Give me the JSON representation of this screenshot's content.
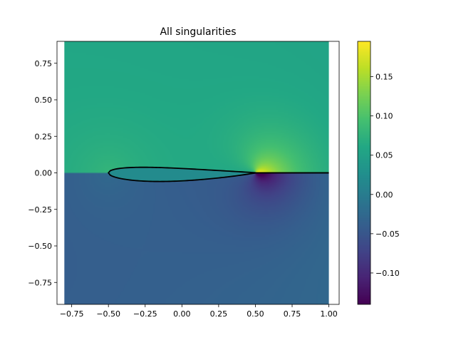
{
  "chart_data": {
    "type": "heatmap",
    "title": "All singularities",
    "xlabel": "",
    "ylabel": "",
    "xlim": [
      -0.85,
      1.07
    ],
    "ylim": [
      -0.9,
      0.9
    ],
    "field_extent": {
      "x": [
        -0.8,
        1.0
      ],
      "y": [
        -0.9,
        0.9
      ]
    },
    "x_ticks": [
      -0.75,
      -0.5,
      -0.25,
      0.0,
      0.25,
      0.5,
      0.75,
      1.0
    ],
    "x_tick_labels": [
      "−0.75",
      "−0.50",
      "−0.25",
      "0.00",
      "0.25",
      "0.50",
      "0.75",
      "1.00"
    ],
    "y_ticks": [
      -0.75,
      -0.5,
      -0.25,
      0.0,
      0.25,
      0.5,
      0.75
    ],
    "y_tick_labels": [
      "−0.75",
      "−0.50",
      "−0.25",
      "0.00",
      "0.25",
      "0.50",
      "0.75"
    ],
    "colormap": "viridis",
    "colorbar": {
      "min": -0.14,
      "max": 0.195,
      "ticks": [
        -0.1,
        -0.05,
        0.0,
        0.05,
        0.1,
        0.15
      ],
      "tick_labels": [
        "−0.10",
        "−0.05",
        "0.00",
        "0.05",
        "0.10",
        "0.15"
      ]
    },
    "airfoil": {
      "leading_edge_x": -0.5,
      "trailing_edge_x": 0.5,
      "wake_end_x": 1.0,
      "color": "#000000"
    },
    "grid": false,
    "legend": "none"
  }
}
